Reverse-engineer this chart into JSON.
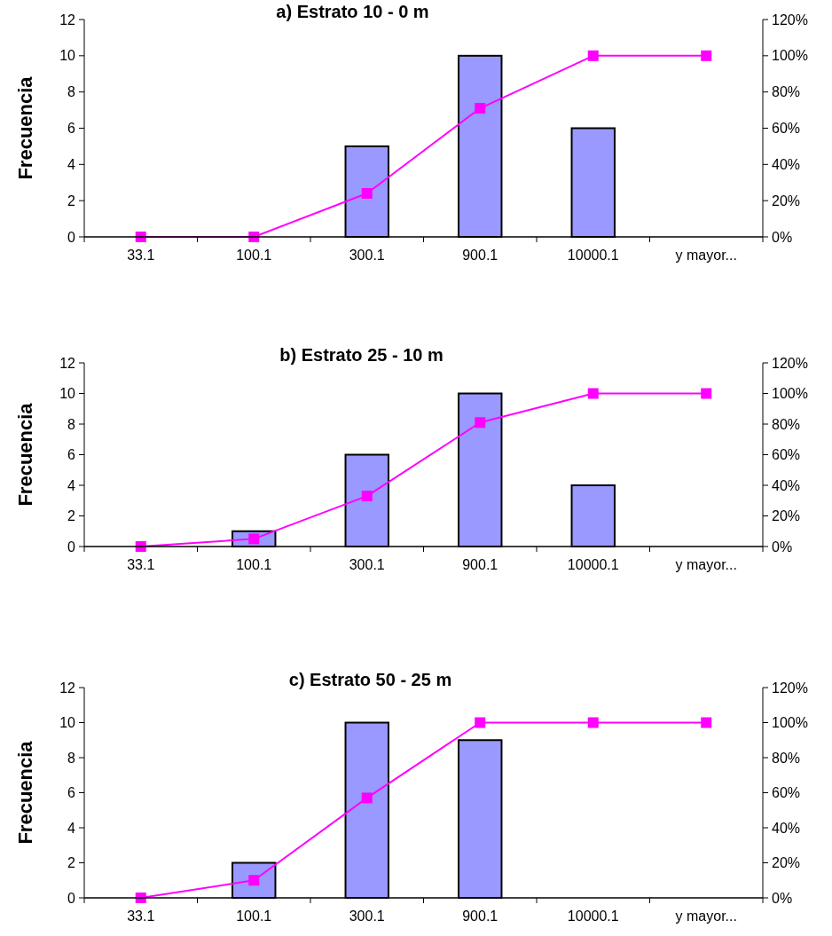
{
  "chart_data": [
    {
      "type": "bar",
      "title": "a) Estrato 10 - 0 m",
      "ylabel": "Frecuencia",
      "categories": [
        "33.1",
        "100.1",
        "300.1",
        "900.1",
        "10000.1",
        "y mayor..."
      ],
      "ylim": [
        0,
        12
      ],
      "yticks": [
        0,
        2,
        4,
        6,
        8,
        10,
        12
      ],
      "y2lim": [
        0,
        120
      ],
      "y2ticks": [
        {
          "value": 0,
          "label": "0%"
        },
        {
          "value": 20,
          "label": "20%"
        },
        {
          "value": 40,
          "label": "40%"
        },
        {
          "value": 60,
          "label": "60%"
        },
        {
          "value": 80,
          "label": "80%"
        },
        {
          "value": 100,
          "label": "100%"
        },
        {
          "value": 120,
          "label": "120%"
        }
      ],
      "marker": "square",
      "series": [
        {
          "color": "#9999ff",
          "values": [
            0,
            0,
            5,
            10,
            6,
            0
          ]
        },
        {
          "type": "line",
          "axis": "y2",
          "color": "#ff00ff",
          "values": [
            0,
            0,
            24,
            71,
            100,
            100
          ]
        }
      ]
    },
    {
      "type": "bar",
      "title": "b) Estrato 25 - 10 m",
      "ylabel": "Frecuencia",
      "categories": [
        "33.1",
        "100.1",
        "300.1",
        "900.1",
        "10000.1",
        "y mayor..."
      ],
      "ylim": [
        0,
        12
      ],
      "yticks": [
        0,
        2,
        4,
        6,
        8,
        10,
        12
      ],
      "y2lim": [
        0,
        120
      ],
      "y2ticks": [
        {
          "value": 0,
          "label": "0%"
        },
        {
          "value": 20,
          "label": "20%"
        },
        {
          "value": 40,
          "label": "40%"
        },
        {
          "value": 60,
          "label": "60%"
        },
        {
          "value": 80,
          "label": "80%"
        },
        {
          "value": 100,
          "label": "100%"
        },
        {
          "value": 120,
          "label": "120%"
        }
      ],
      "marker": "square",
      "series": [
        {
          "color": "#9999ff",
          "values": [
            0,
            1,
            6,
            10,
            4,
            0
          ]
        },
        {
          "type": "line",
          "axis": "y2",
          "color": "#ff00ff",
          "values": [
            0,
            5,
            33,
            81,
            100,
            100
          ]
        }
      ]
    },
    {
      "type": "bar",
      "title": "c) Estrato 50 - 25 m",
      "ylabel": "Frecuencia",
      "categories": [
        "33.1",
        "100.1",
        "300.1",
        "900.1",
        "10000.1",
        "y mayor..."
      ],
      "ylim": [
        0,
        12
      ],
      "yticks": [
        0,
        2,
        4,
        6,
        8,
        10,
        12
      ],
      "y2lim": [
        0,
        120
      ],
      "y2ticks": [
        {
          "value": 0,
          "label": "0%"
        },
        {
          "value": 20,
          "label": "20%"
        },
        {
          "value": 40,
          "label": "40%"
        },
        {
          "value": 60,
          "label": "60%"
        },
        {
          "value": 80,
          "label": "80%"
        },
        {
          "value": 100,
          "label": "100%"
        },
        {
          "value": 120,
          "label": "120%"
        }
      ],
      "marker": "square",
      "series": [
        {
          "color": "#9999ff",
          "values": [
            0,
            2,
            10,
            9,
            0,
            0
          ]
        },
        {
          "type": "line",
          "axis": "y2",
          "color": "#ff00ff",
          "values": [
            0,
            10,
            57,
            100,
            100,
            100
          ]
        }
      ]
    }
  ]
}
